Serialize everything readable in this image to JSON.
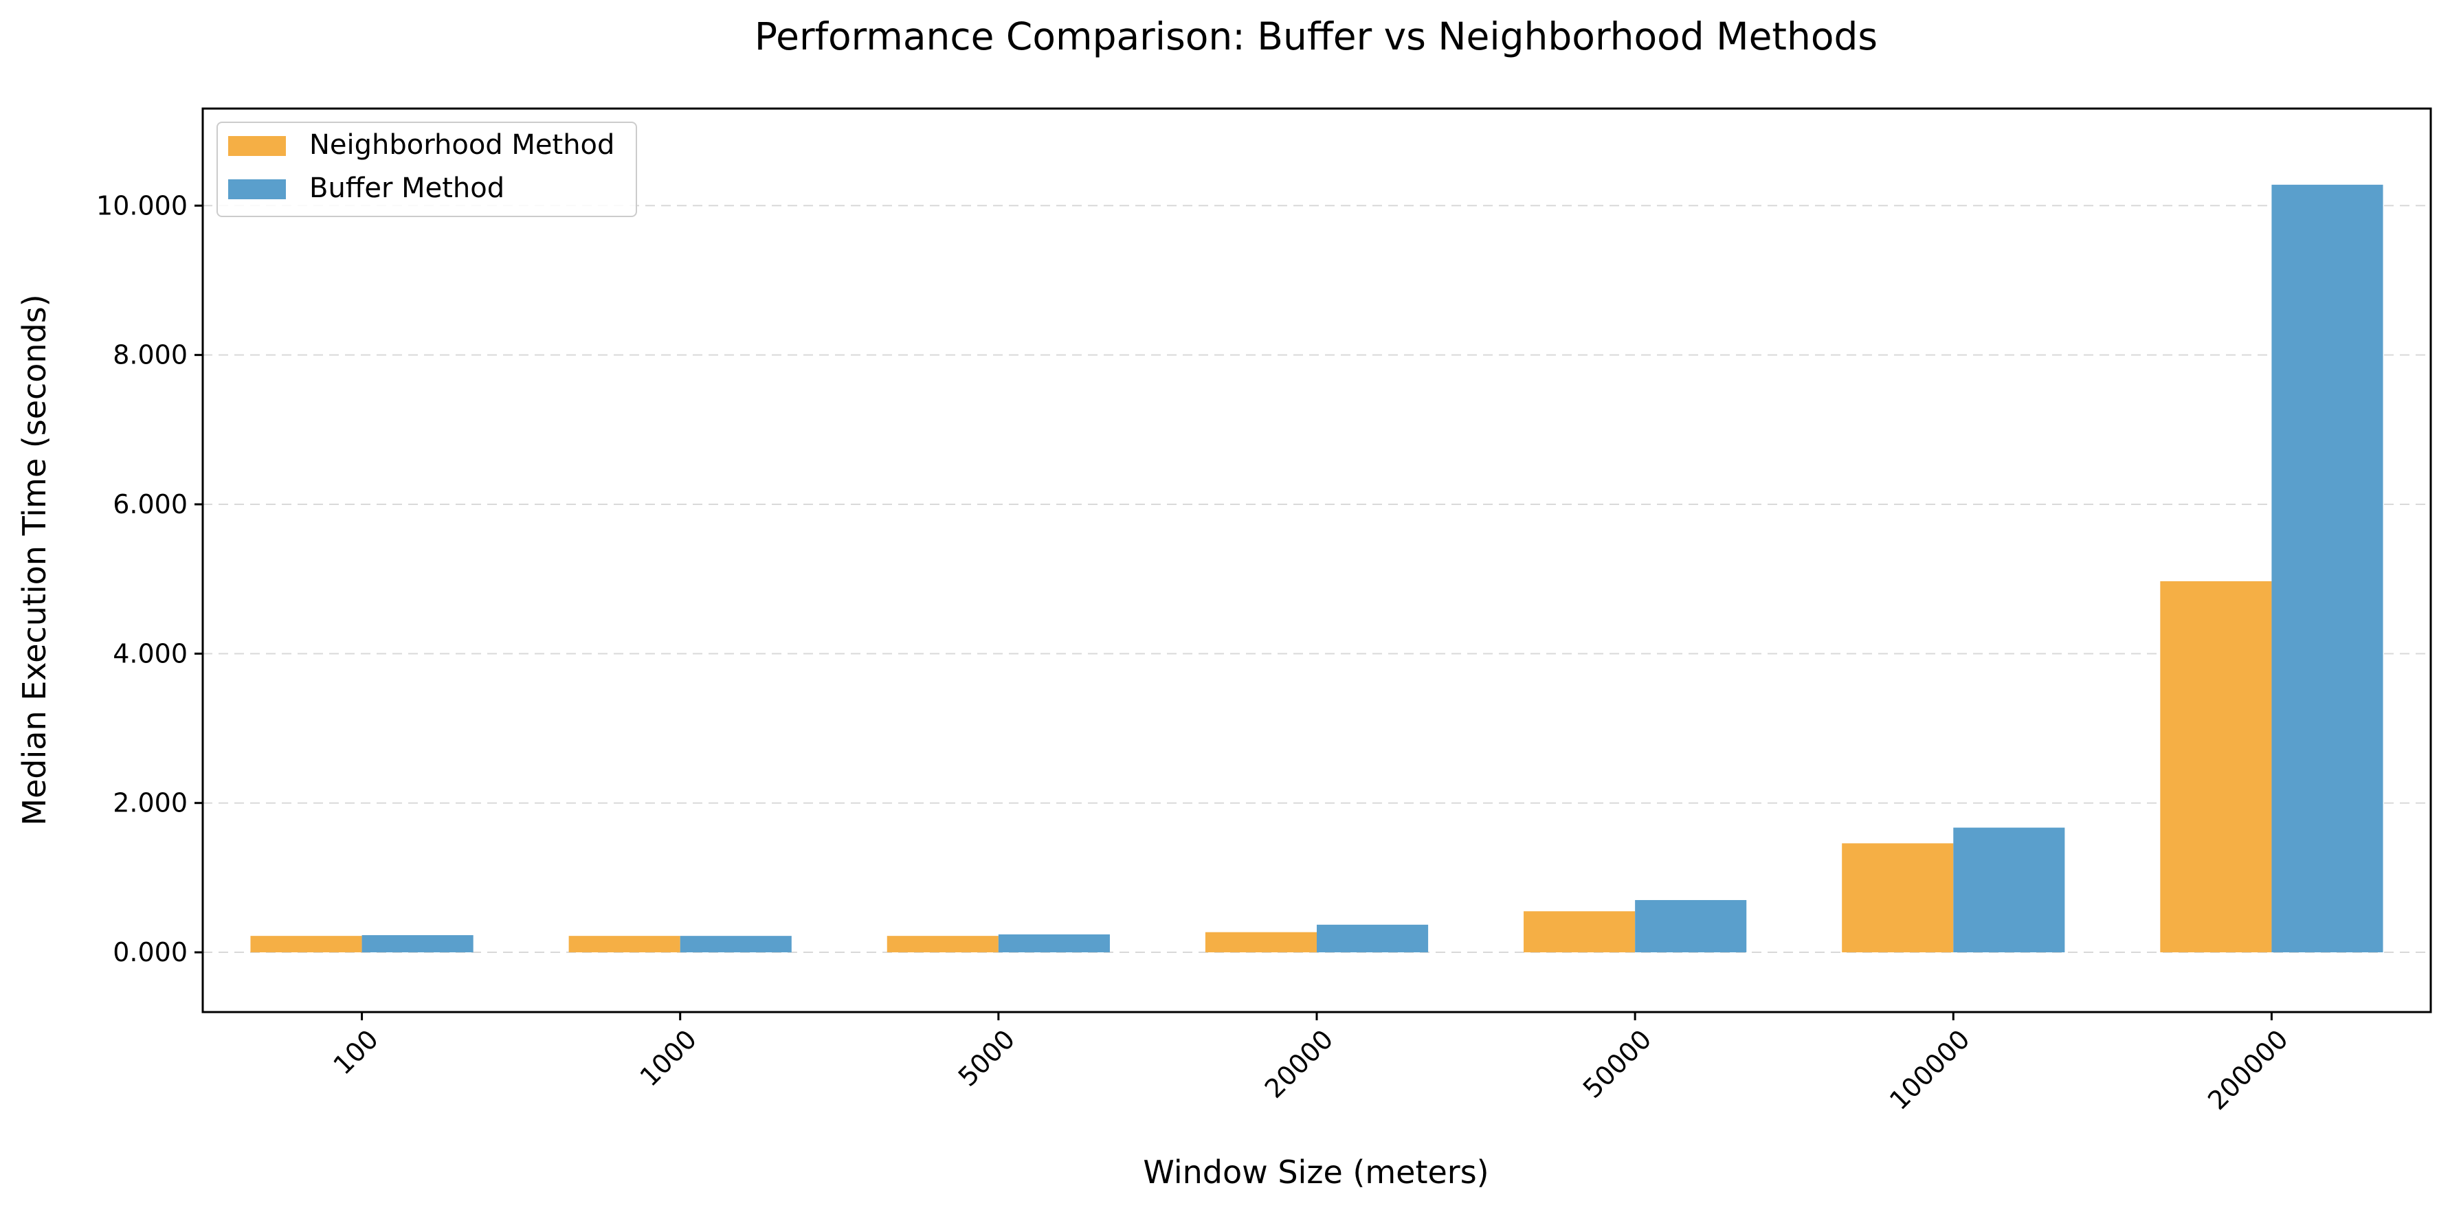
{
  "chart_data": {
    "type": "bar",
    "title": "Performance Comparison: Buffer vs Neighborhood Methods",
    "xlabel": "Window Size (meters)",
    "ylabel": "Median Execution Time (seconds)",
    "categories": [
      "100",
      "1000",
      "5000",
      "20000",
      "50000",
      "100000",
      "200000"
    ],
    "series": [
      {
        "name": "Neighborhood Method",
        "color": "#F5AF45",
        "values": [
          0.22,
          0.22,
          0.22,
          0.27,
          0.55,
          1.46,
          4.97
        ]
      },
      {
        "name": "Buffer Method",
        "color": "#5A9FCC",
        "values": [
          0.23,
          0.22,
          0.24,
          0.37,
          0.7,
          1.67,
          10.28
        ]
      }
    ],
    "ylim": [
      -0.8,
      11.3
    ],
    "yticks": [
      0,
      2,
      4,
      6,
      8,
      10
    ],
    "ytick_labels": [
      "0.000",
      "2.000",
      "4.000",
      "6.000",
      "8.000",
      "10.000"
    ],
    "grid": "y-dashed",
    "legend_position": "top-left"
  }
}
